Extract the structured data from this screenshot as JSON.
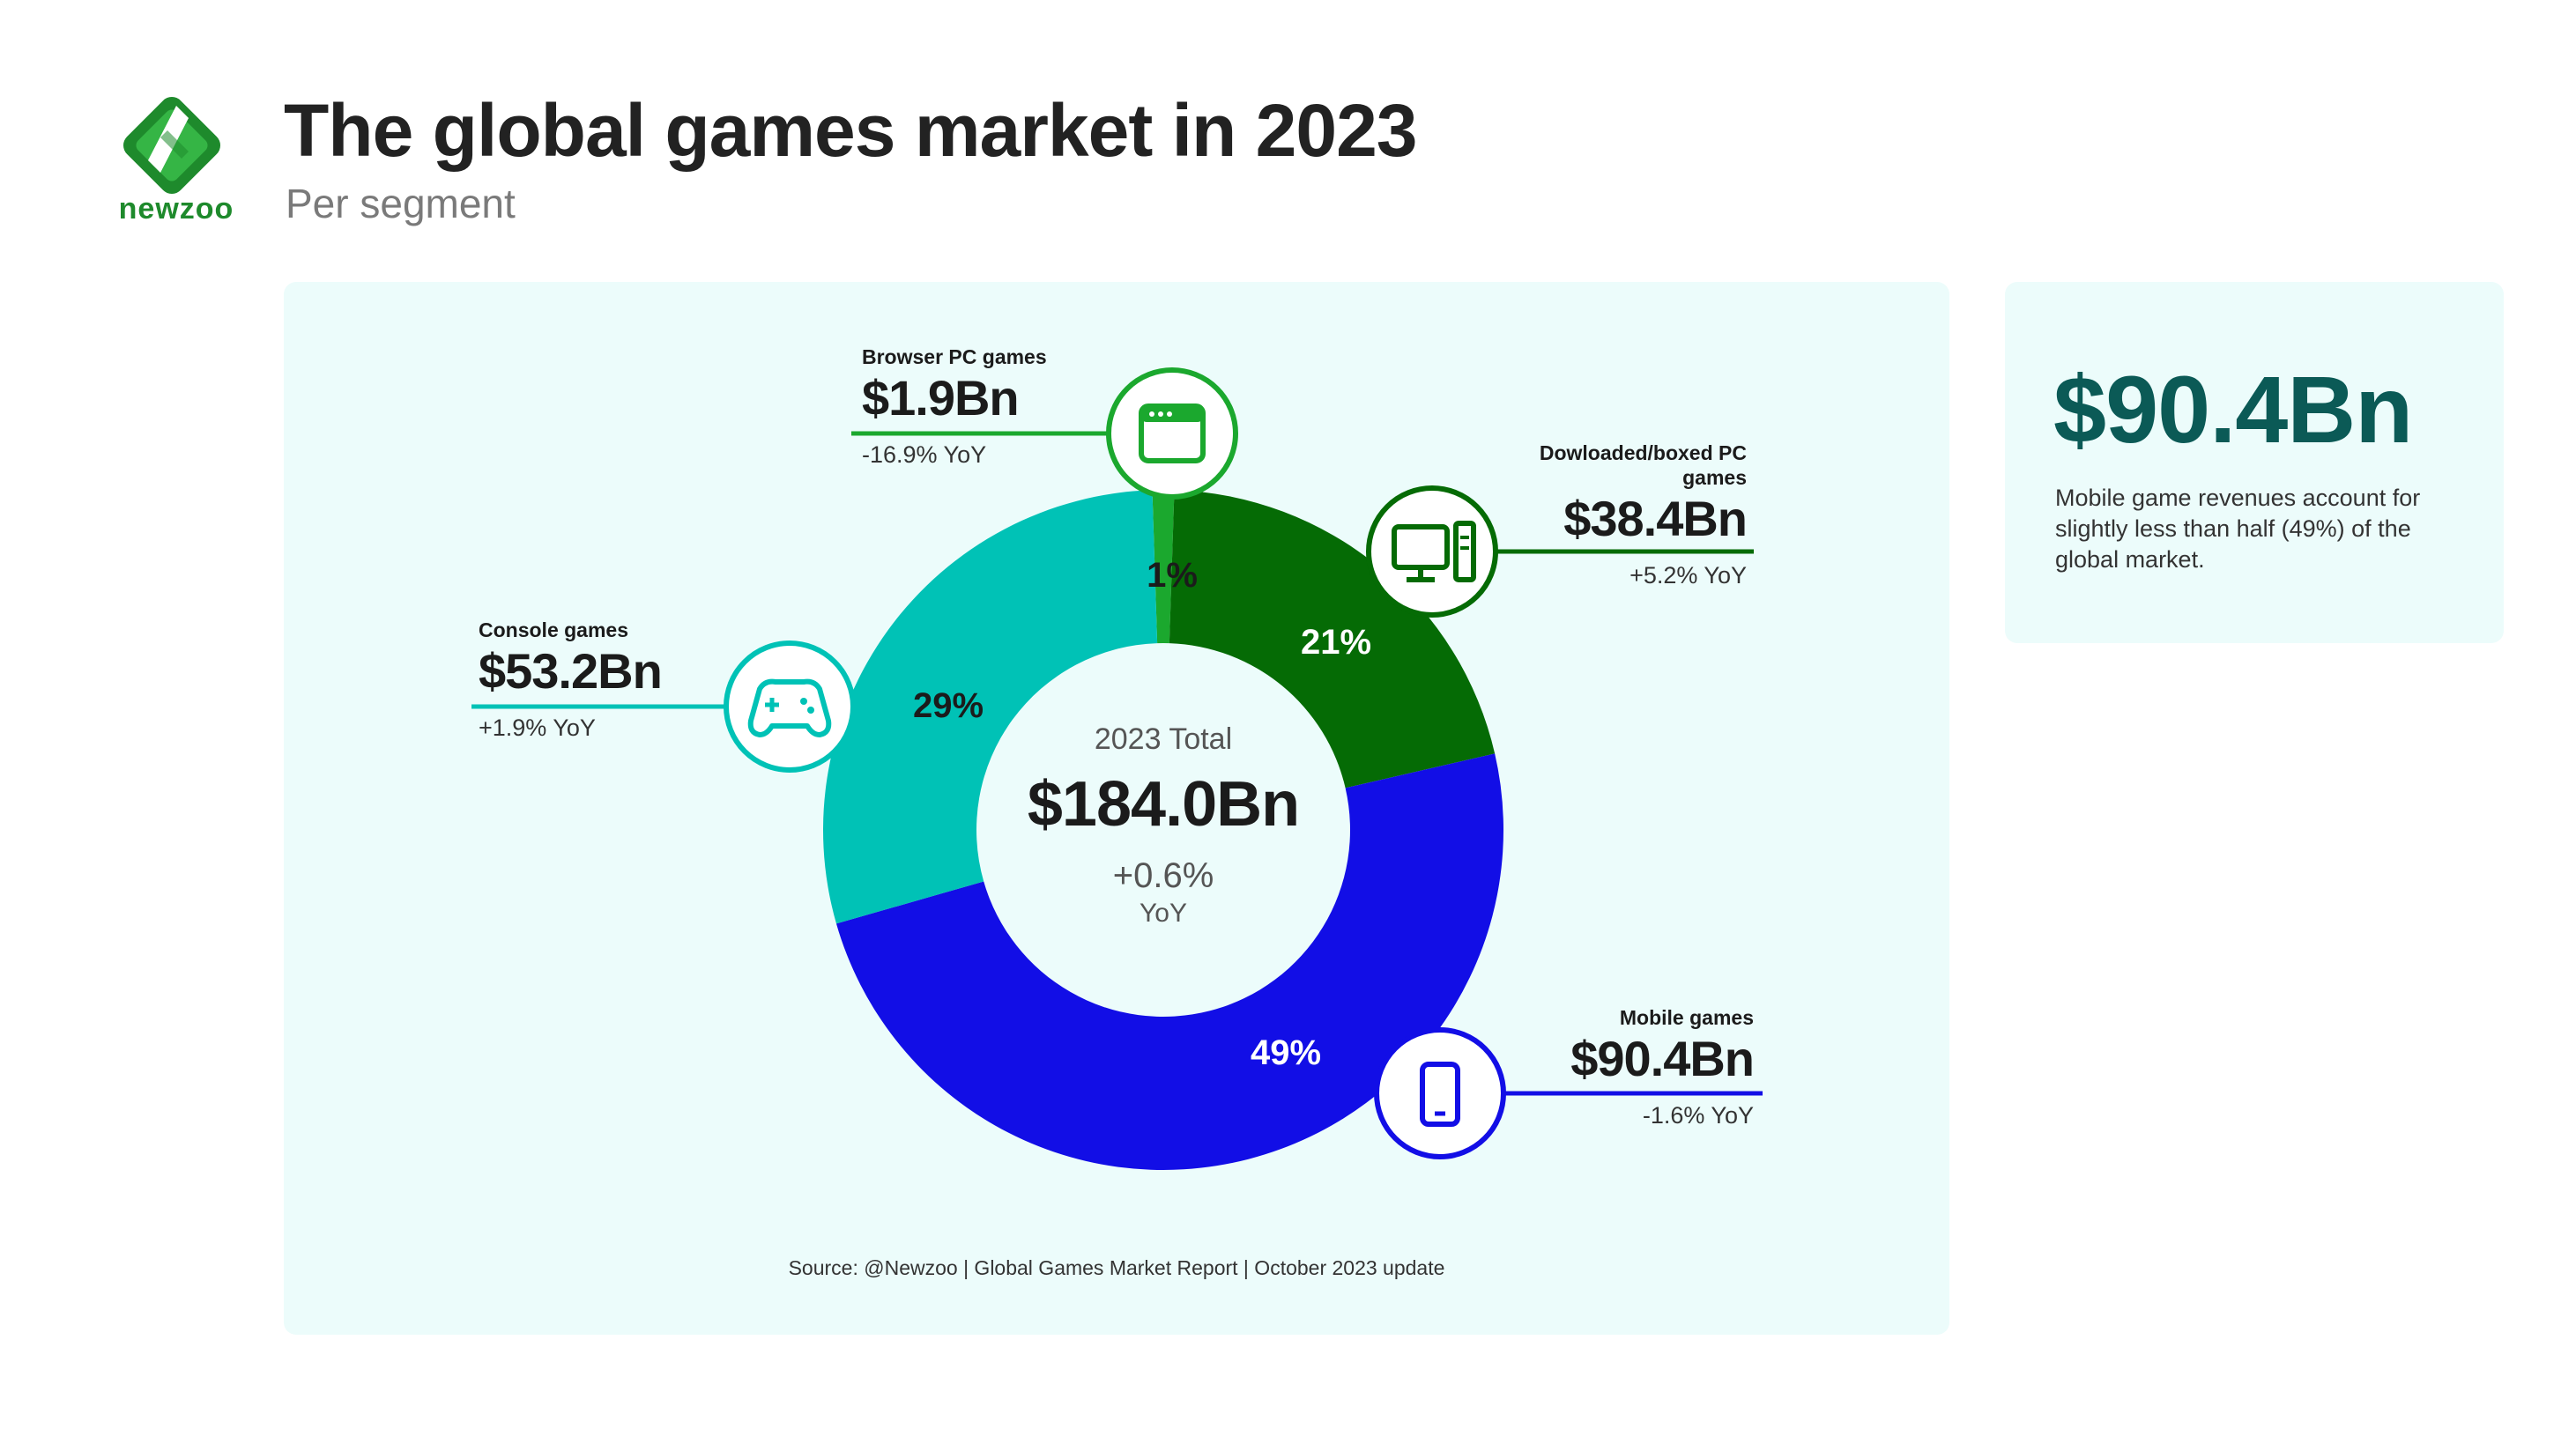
{
  "brand": {
    "name": "newzoo",
    "logo_icon": "newzoo-logo-icon",
    "color": "#1e8a2c"
  },
  "header": {
    "title": "The global games market in 2023",
    "subtitle": "Per segment"
  },
  "center": {
    "label": "2023 Total",
    "total": "$184.0Bn",
    "yoy": "+0.6%",
    "yoy_unit": "YoY"
  },
  "highlight": {
    "value": "$90.4Bn",
    "text": "Mobile game revenues account for slightly less than half (49%) of the global market.",
    "color": "#0b5a56"
  },
  "segments": {
    "browser": {
      "name": "Browser PC games",
      "value": "$1.9Bn",
      "yoy": "-16.9% YoY",
      "share_label": "1%",
      "icon": "browser-window-icon",
      "color": "#1ba82e"
    },
    "downloaded": {
      "name": "Dowloaded/boxed PC games",
      "value": "$38.4Bn",
      "yoy": "+5.2% YoY",
      "share_label": "21%",
      "icon": "desktop-pc-icon",
      "color": "#056b05"
    },
    "mobile": {
      "name": "Mobile games",
      "value": "$90.4Bn",
      "yoy": "-1.6% YoY",
      "share_label": "49%",
      "icon": "mobile-phone-icon",
      "color": "#120ee6"
    },
    "console": {
      "name": "Console games",
      "value": "$53.2Bn",
      "yoy": "+1.9% YoY",
      "share_label": "29%",
      "icon": "gamepad-icon",
      "color": "#00c2b6"
    }
  },
  "source": "Source: @Newzoo | Global Games Market Report | October 2023 update",
  "chart_data": {
    "type": "pie",
    "variant": "donut",
    "title": "The global games market in 2023",
    "subtitle": "Per segment",
    "categories": [
      "Browser PC games",
      "Dowloaded/boxed PC games",
      "Mobile games",
      "Console games"
    ],
    "values": [
      1.9,
      38.4,
      90.4,
      53.2
    ],
    "unit": "$Bn",
    "shares_pct": [
      1,
      21,
      49,
      29
    ],
    "yoy_pct": [
      -16.9,
      5.2,
      -1.6,
      1.9
    ],
    "colors": [
      "#1ba82e",
      "#056b05",
      "#120ee6",
      "#00c2b6"
    ],
    "total": 184.0,
    "total_yoy_pct": 0.6
  }
}
